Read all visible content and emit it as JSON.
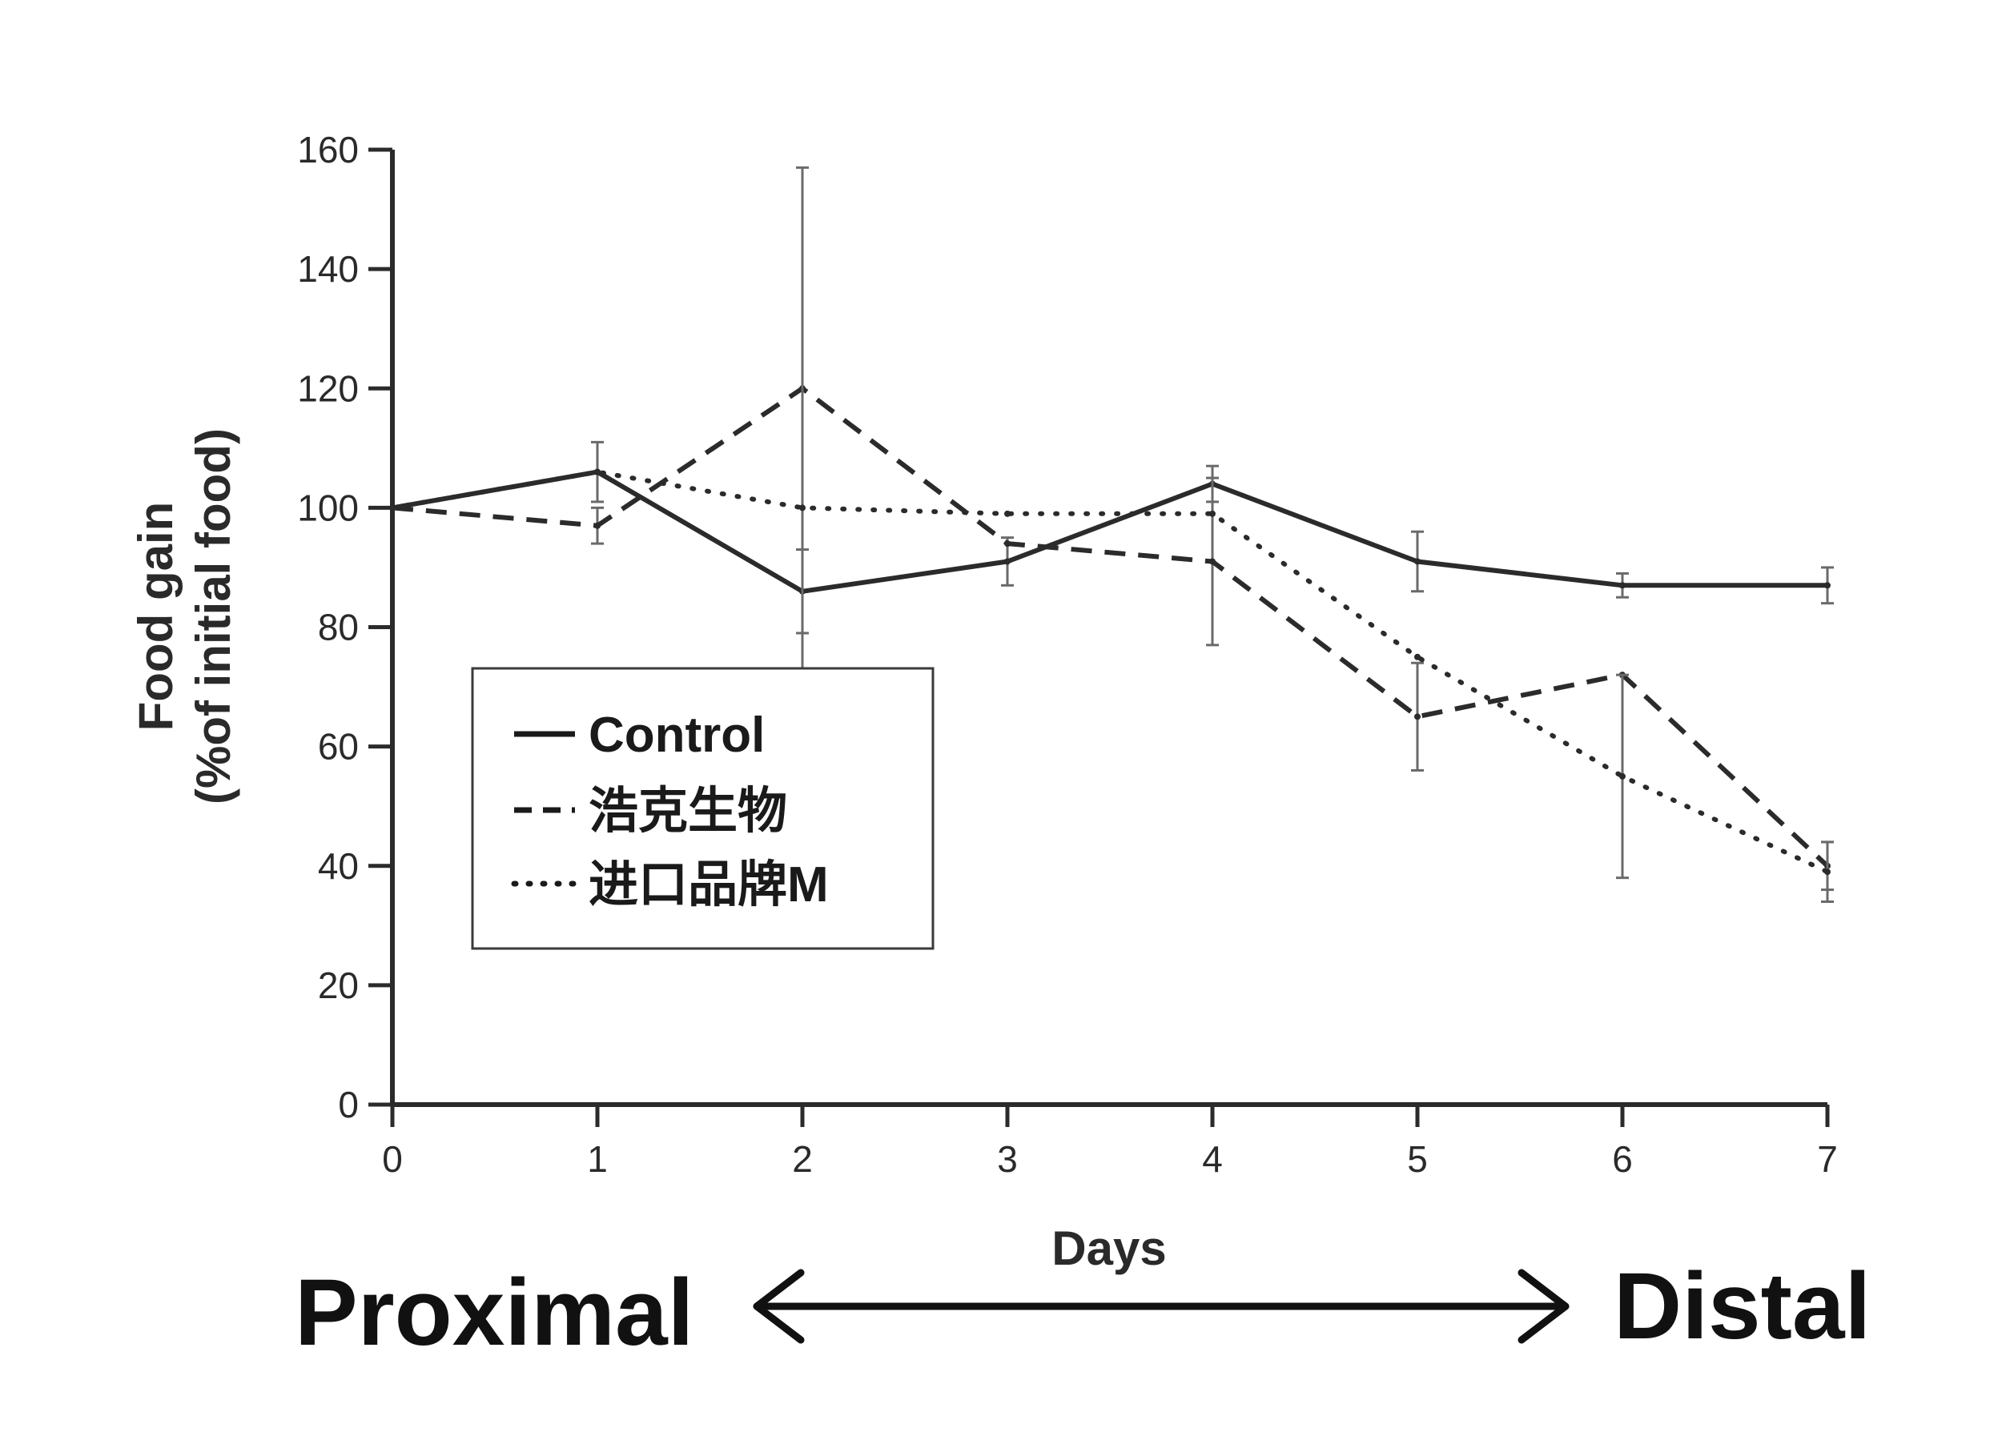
{
  "chart_data": {
    "type": "line",
    "title": "",
    "xlabel": "Days",
    "ylabel": "Food gain",
    "ylabel_line2": "(%of initial food)",
    "x": [
      0,
      1,
      2,
      3,
      4,
      5,
      6,
      7
    ],
    "x_ticks": [
      "0",
      "1",
      "2",
      "3",
      "4",
      "5",
      "6",
      "7"
    ],
    "ylim": [
      0,
      160
    ],
    "y_ticks": [
      "0",
      "20",
      "40",
      "60",
      "80",
      "100",
      "120",
      "140",
      "160"
    ],
    "grid": false,
    "legend_position": "center-left",
    "series": [
      {
        "name": "Control",
        "style": "solid",
        "values": [
          100,
          106,
          86,
          91,
          104,
          91,
          87,
          87
        ],
        "error": [
          0,
          5,
          7,
          4,
          3,
          5,
          2,
          3
        ]
      },
      {
        "name": "浩克生物",
        "style": "dashed",
        "values": [
          100,
          97,
          120,
          94,
          91,
          65,
          72,
          40
        ],
        "error": [
          0,
          3,
          0,
          0,
          14,
          9,
          0,
          4
        ]
      },
      {
        "name": "进口品牌M",
        "style": "dotted",
        "values": [
          100,
          106,
          100,
          99,
          99,
          75,
          55,
          39
        ],
        "error": [
          0,
          0,
          57,
          0,
          0,
          0,
          17,
          5
        ]
      }
    ],
    "annotations": {
      "left": "Proximal",
      "right": "Distal"
    }
  },
  "colors": {
    "line": "#2b2b2b",
    "error_bar": "#6a6a6a"
  }
}
